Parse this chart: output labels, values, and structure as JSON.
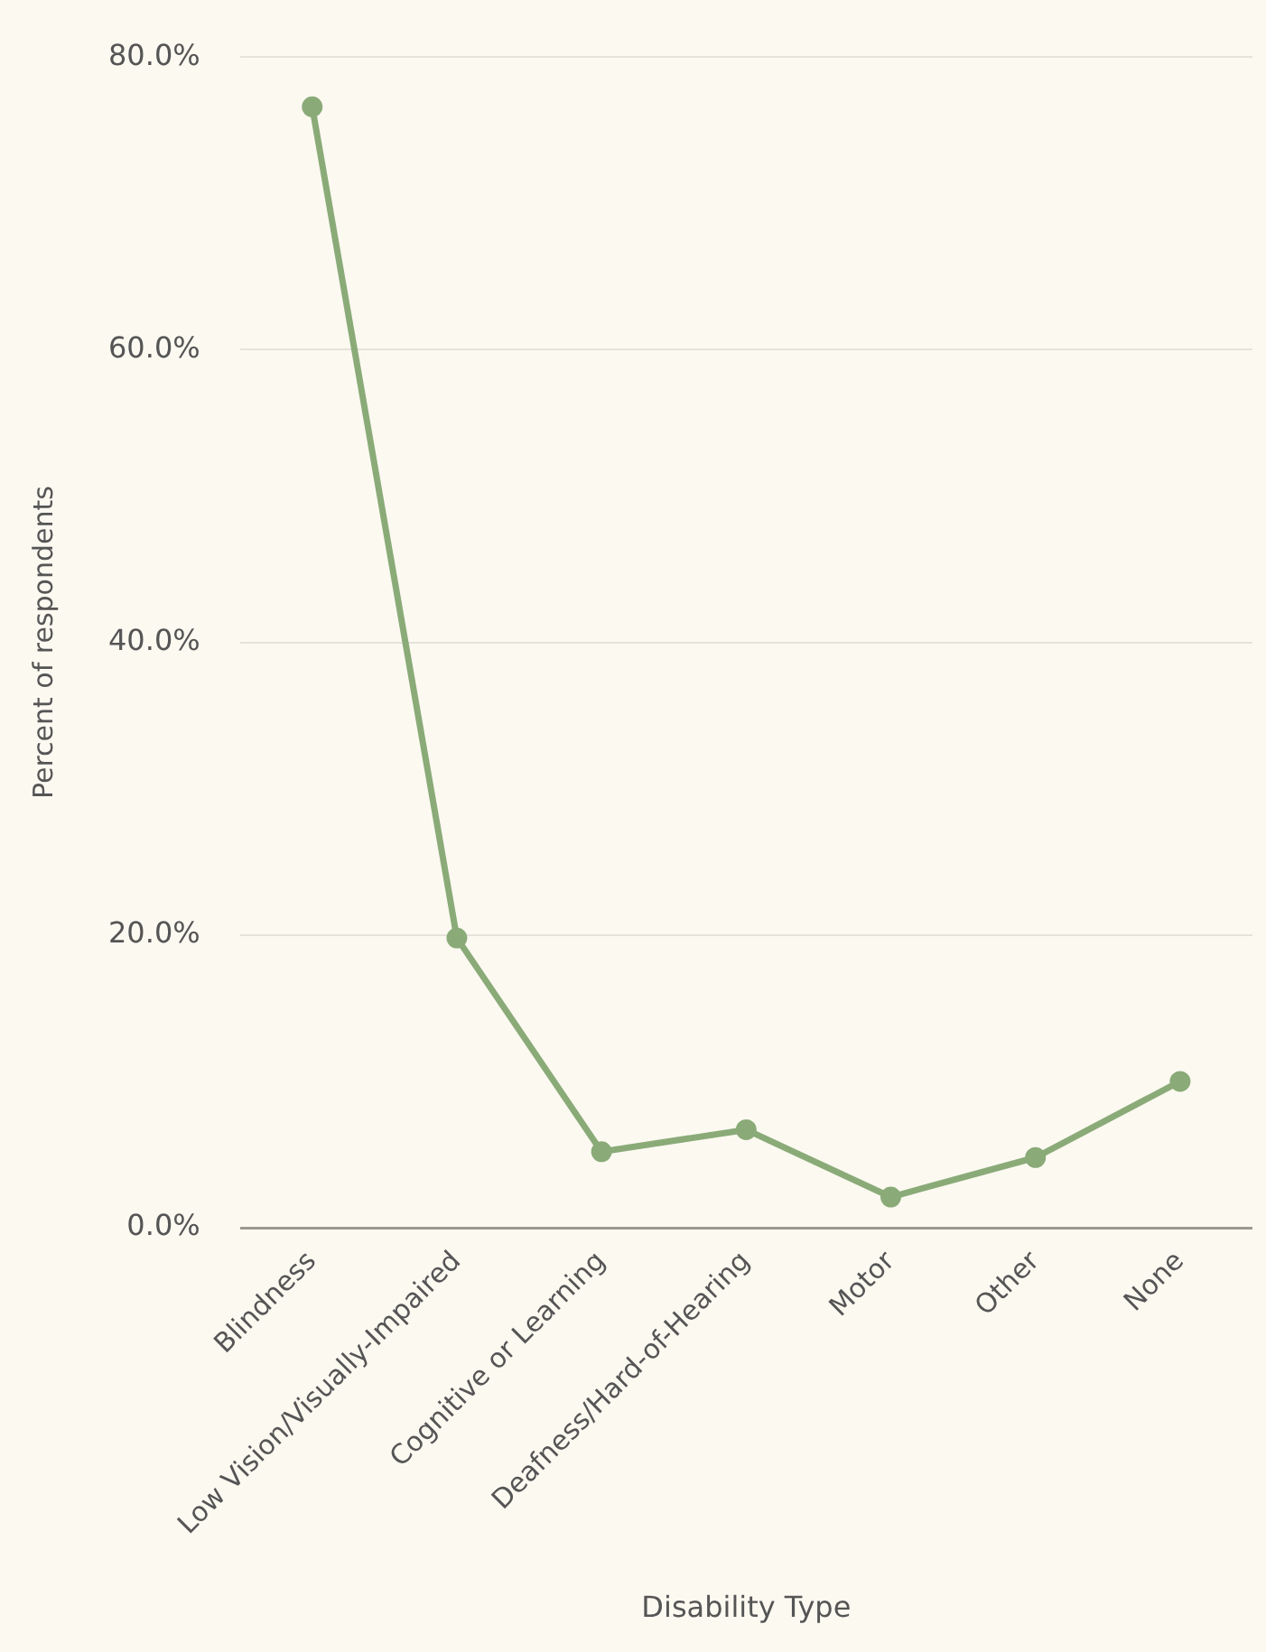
{
  "chart_data": {
    "type": "line",
    "xlabel": "Disability Type",
    "ylabel": "Percent of respondents",
    "categories": [
      "Blindness",
      "Low Vision/Visually-Impaired",
      "Cognitive or Learning",
      "Deafness/Hard-of-Hearing",
      "Motor",
      "Other",
      "None"
    ],
    "series": [
      {
        "color": "#8aab78",
        "values": [
          76.6,
          19.8,
          5.2,
          6.7,
          2.1,
          4.8,
          10.0
        ]
      }
    ],
    "ylim": [
      0,
      80
    ],
    "yticks": [
      {
        "value": 0,
        "label": "0.0%"
      },
      {
        "value": 20,
        "label": "20.0%"
      },
      {
        "value": 40,
        "label": "40.0%"
      },
      {
        "value": 60,
        "label": "60.0%"
      },
      {
        "value": 80,
        "label": "80.0%"
      }
    ],
    "grid": "y",
    "legend": false,
    "marker": "circle",
    "line_style": "solid"
  }
}
